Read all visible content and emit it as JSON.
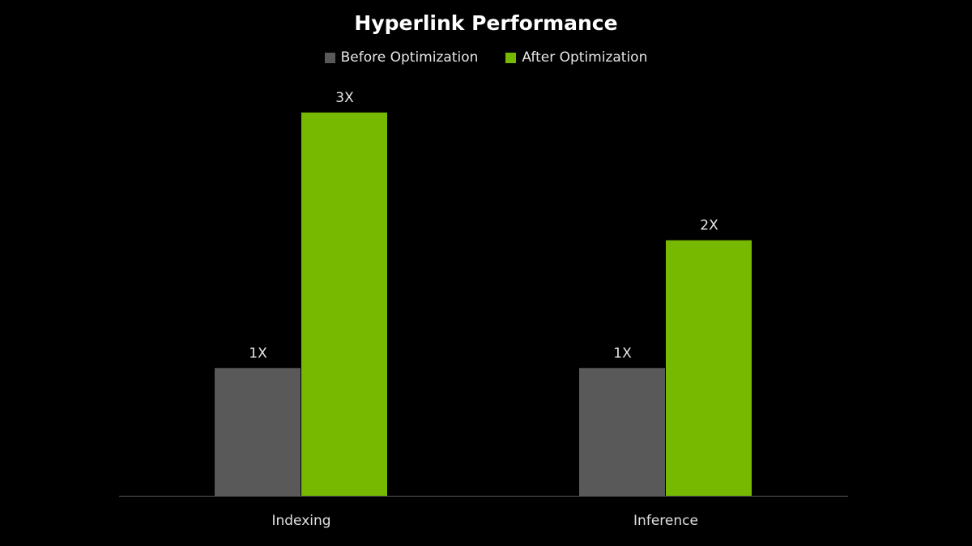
{
  "chart_data": {
    "type": "bar",
    "title": "Hyperlink Performance",
    "categories": [
      "Indexing",
      "Inference"
    ],
    "series": [
      {
        "name": "Before Optimization",
        "values": [
          1,
          1
        ],
        "labels": [
          "1X",
          "1X"
        ],
        "color": "#595959"
      },
      {
        "name": "After Optimization",
        "values": [
          3,
          2
        ],
        "labels": [
          "3X",
          "2X"
        ],
        "color": "#76b900"
      }
    ],
    "xlabel": "",
    "ylabel": "",
    "ylim": [
      0,
      3.5
    ],
    "grid": false,
    "legend": "top-center"
  }
}
